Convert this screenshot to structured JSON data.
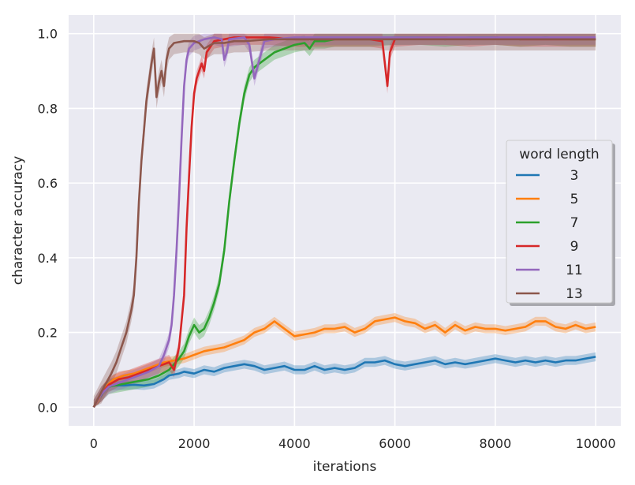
{
  "chart_data": {
    "type": "line",
    "xlabel": "iterations",
    "ylabel": "character accuracy",
    "xlim": [
      -500,
      10500
    ],
    "ylim": [
      -0.05,
      1.05
    ],
    "xticks": [
      0,
      2000,
      4000,
      6000,
      8000,
      10000
    ],
    "yticks": [
      0.0,
      0.2,
      0.4,
      0.6,
      0.8,
      1.0
    ],
    "xtick_labels": [
      "0",
      "2000",
      "4000",
      "6000",
      "8000",
      "10000"
    ],
    "ytick_labels": [
      "0.0",
      "0.2",
      "0.4",
      "0.6",
      "0.8",
      "1.0"
    ],
    "grid": true,
    "background": "#eaeaf2",
    "legend": {
      "title": "word length",
      "placement": "center-right"
    },
    "series": [
      {
        "name": "3",
        "color": "#1f77b4",
        "band": 0.012,
        "points": [
          [
            0,
            0.0
          ],
          [
            100,
            0.02
          ],
          [
            200,
            0.045
          ],
          [
            300,
            0.055
          ],
          [
            400,
            0.058
          ],
          [
            600,
            0.058
          ],
          [
            800,
            0.06
          ],
          [
            1000,
            0.058
          ],
          [
            1200,
            0.062
          ],
          [
            1400,
            0.075
          ],
          [
            1500,
            0.085
          ],
          [
            1700,
            0.09
          ],
          [
            1800,
            0.095
          ],
          [
            2000,
            0.09
          ],
          [
            2200,
            0.1
          ],
          [
            2400,
            0.095
          ],
          [
            2600,
            0.105
          ],
          [
            2800,
            0.11
          ],
          [
            3000,
            0.115
          ],
          [
            3200,
            0.11
          ],
          [
            3400,
            0.1
          ],
          [
            3600,
            0.105
          ],
          [
            3800,
            0.11
          ],
          [
            4000,
            0.1
          ],
          [
            4200,
            0.1
          ],
          [
            4400,
            0.11
          ],
          [
            4600,
            0.1
          ],
          [
            4800,
            0.105
          ],
          [
            5000,
            0.1
          ],
          [
            5200,
            0.105
          ],
          [
            5400,
            0.12
          ],
          [
            5600,
            0.12
          ],
          [
            5800,
            0.125
          ],
          [
            6000,
            0.115
          ],
          [
            6200,
            0.11
          ],
          [
            6400,
            0.115
          ],
          [
            6600,
            0.12
          ],
          [
            6800,
            0.125
          ],
          [
            7000,
            0.115
          ],
          [
            7200,
            0.12
          ],
          [
            7400,
            0.115
          ],
          [
            7600,
            0.12
          ],
          [
            7800,
            0.125
          ],
          [
            8000,
            0.13
          ],
          [
            8200,
            0.125
          ],
          [
            8400,
            0.12
          ],
          [
            8600,
            0.125
          ],
          [
            8800,
            0.12
          ],
          [
            9000,
            0.125
          ],
          [
            9200,
            0.12
          ],
          [
            9400,
            0.125
          ],
          [
            9600,
            0.125
          ],
          [
            9800,
            0.13
          ],
          [
            10000,
            0.135
          ]
        ]
      },
      {
        "name": "5",
        "color": "#ff7f0e",
        "band": 0.012,
        "points": [
          [
            0,
            0.0
          ],
          [
            100,
            0.02
          ],
          [
            200,
            0.05
          ],
          [
            400,
            0.075
          ],
          [
            600,
            0.085
          ],
          [
            800,
            0.09
          ],
          [
            1000,
            0.1
          ],
          [
            1200,
            0.11
          ],
          [
            1400,
            0.12
          ],
          [
            1600,
            0.125
          ],
          [
            1800,
            0.13
          ],
          [
            2000,
            0.14
          ],
          [
            2200,
            0.15
          ],
          [
            2400,
            0.155
          ],
          [
            2600,
            0.16
          ],
          [
            2800,
            0.17
          ],
          [
            3000,
            0.18
          ],
          [
            3200,
            0.2
          ],
          [
            3400,
            0.21
          ],
          [
            3600,
            0.23
          ],
          [
            3800,
            0.21
          ],
          [
            4000,
            0.19
          ],
          [
            4200,
            0.195
          ],
          [
            4400,
            0.2
          ],
          [
            4600,
            0.21
          ],
          [
            4800,
            0.21
          ],
          [
            5000,
            0.215
          ],
          [
            5200,
            0.2
          ],
          [
            5400,
            0.21
          ],
          [
            5600,
            0.23
          ],
          [
            5800,
            0.235
          ],
          [
            6000,
            0.24
          ],
          [
            6200,
            0.23
          ],
          [
            6400,
            0.225
          ],
          [
            6600,
            0.21
          ],
          [
            6800,
            0.22
          ],
          [
            7000,
            0.2
          ],
          [
            7200,
            0.22
          ],
          [
            7400,
            0.205
          ],
          [
            7600,
            0.215
          ],
          [
            7800,
            0.21
          ],
          [
            8000,
            0.21
          ],
          [
            8200,
            0.205
          ],
          [
            8400,
            0.21
          ],
          [
            8600,
            0.215
          ],
          [
            8800,
            0.23
          ],
          [
            9000,
            0.23
          ],
          [
            9200,
            0.215
          ],
          [
            9400,
            0.21
          ],
          [
            9600,
            0.22
          ],
          [
            9800,
            0.21
          ],
          [
            10000,
            0.215
          ]
        ]
      },
      {
        "name": "7",
        "color": "#2ca02c",
        "band": 0.02,
        "points": [
          [
            0,
            0.0
          ],
          [
            150,
            0.035
          ],
          [
            300,
            0.055
          ],
          [
            500,
            0.06
          ],
          [
            700,
            0.065
          ],
          [
            900,
            0.07
          ],
          [
            1100,
            0.075
          ],
          [
            1300,
            0.085
          ],
          [
            1500,
            0.1
          ],
          [
            1700,
            0.13
          ],
          [
            1800,
            0.15
          ],
          [
            1900,
            0.19
          ],
          [
            2000,
            0.22
          ],
          [
            2100,
            0.2
          ],
          [
            2200,
            0.21
          ],
          [
            2300,
            0.24
          ],
          [
            2400,
            0.28
          ],
          [
            2500,
            0.33
          ],
          [
            2600,
            0.42
          ],
          [
            2700,
            0.55
          ],
          [
            2800,
            0.66
          ],
          [
            2900,
            0.76
          ],
          [
            3000,
            0.84
          ],
          [
            3100,
            0.89
          ],
          [
            3200,
            0.91
          ],
          [
            3300,
            0.92
          ],
          [
            3400,
            0.93
          ],
          [
            3600,
            0.95
          ],
          [
            3800,
            0.96
          ],
          [
            4000,
            0.97
          ],
          [
            4200,
            0.975
          ],
          [
            4300,
            0.96
          ],
          [
            4400,
            0.98
          ],
          [
            4600,
            0.98
          ],
          [
            4800,
            0.985
          ],
          [
            5000,
            0.985
          ],
          [
            5500,
            0.985
          ],
          [
            6000,
            0.99
          ],
          [
            6500,
            0.99
          ],
          [
            7000,
            0.985
          ],
          [
            7500,
            0.99
          ],
          [
            8000,
            0.99
          ],
          [
            8500,
            0.985
          ],
          [
            9000,
            0.99
          ],
          [
            9500,
            0.985
          ],
          [
            10000,
            0.985
          ]
        ]
      },
      {
        "name": "9",
        "color": "#d62728",
        "band": 0.02,
        "points": [
          [
            0,
            0.0
          ],
          [
            150,
            0.035
          ],
          [
            300,
            0.06
          ],
          [
            500,
            0.075
          ],
          [
            700,
            0.08
          ],
          [
            900,
            0.09
          ],
          [
            1100,
            0.1
          ],
          [
            1300,
            0.11
          ],
          [
            1500,
            0.12
          ],
          [
            1600,
            0.1
          ],
          [
            1700,
            0.16
          ],
          [
            1800,
            0.3
          ],
          [
            1850,
            0.48
          ],
          [
            1900,
            0.62
          ],
          [
            1950,
            0.75
          ],
          [
            2000,
            0.84
          ],
          [
            2050,
            0.88
          ],
          [
            2100,
            0.9
          ],
          [
            2150,
            0.92
          ],
          [
            2200,
            0.9
          ],
          [
            2250,
            0.95
          ],
          [
            2300,
            0.96
          ],
          [
            2400,
            0.98
          ],
          [
            2600,
            0.985
          ],
          [
            2800,
            0.99
          ],
          [
            3000,
            0.99
          ],
          [
            3500,
            0.99
          ],
          [
            4000,
            0.985
          ],
          [
            5000,
            0.985
          ],
          [
            5500,
            0.985
          ],
          [
            5750,
            0.98
          ],
          [
            5800,
            0.92
          ],
          [
            5850,
            0.86
          ],
          [
            5900,
            0.95
          ],
          [
            6000,
            0.985
          ],
          [
            6500,
            0.99
          ],
          [
            7000,
            0.99
          ],
          [
            7500,
            0.985
          ],
          [
            8000,
            0.99
          ],
          [
            8500,
            0.985
          ],
          [
            9000,
            0.985
          ],
          [
            9500,
            0.985
          ],
          [
            10000,
            0.985
          ]
        ]
      },
      {
        "name": "11",
        "color": "#9467bd",
        "band": 0.02,
        "points": [
          [
            0,
            0.0
          ],
          [
            150,
            0.035
          ],
          [
            300,
            0.055
          ],
          [
            500,
            0.065
          ],
          [
            700,
            0.075
          ],
          [
            900,
            0.085
          ],
          [
            1100,
            0.095
          ],
          [
            1300,
            0.11
          ],
          [
            1400,
            0.14
          ],
          [
            1500,
            0.18
          ],
          [
            1550,
            0.22
          ],
          [
            1600,
            0.3
          ],
          [
            1650,
            0.42
          ],
          [
            1700,
            0.56
          ],
          [
            1750,
            0.72
          ],
          [
            1800,
            0.86
          ],
          [
            1850,
            0.93
          ],
          [
            1900,
            0.96
          ],
          [
            2000,
            0.975
          ],
          [
            2200,
            0.985
          ],
          [
            2400,
            0.99
          ],
          [
            2550,
            0.985
          ],
          [
            2600,
            0.93
          ],
          [
            2650,
            0.95
          ],
          [
            2700,
            0.985
          ],
          [
            3000,
            0.99
          ],
          [
            3100,
            0.97
          ],
          [
            3200,
            0.88
          ],
          [
            3300,
            0.93
          ],
          [
            3400,
            0.98
          ],
          [
            3600,
            0.985
          ],
          [
            4000,
            0.99
          ],
          [
            5000,
            0.99
          ],
          [
            6000,
            0.99
          ],
          [
            7000,
            0.99
          ],
          [
            8000,
            0.99
          ],
          [
            9000,
            0.99
          ],
          [
            10000,
            0.99
          ]
        ]
      },
      {
        "name": "13",
        "color": "#8c564b",
        "band": 0.03,
        "points": [
          [
            0,
            0.0
          ],
          [
            150,
            0.04
          ],
          [
            250,
            0.065
          ],
          [
            350,
            0.09
          ],
          [
            450,
            0.12
          ],
          [
            550,
            0.16
          ],
          [
            650,
            0.2
          ],
          [
            750,
            0.26
          ],
          [
            800,
            0.3
          ],
          [
            850,
            0.4
          ],
          [
            900,
            0.55
          ],
          [
            950,
            0.66
          ],
          [
            1000,
            0.74
          ],
          [
            1050,
            0.82
          ],
          [
            1100,
            0.87
          ],
          [
            1150,
            0.92
          ],
          [
            1200,
            0.96
          ],
          [
            1250,
            0.83
          ],
          [
            1300,
            0.87
          ],
          [
            1350,
            0.9
          ],
          [
            1400,
            0.86
          ],
          [
            1450,
            0.93
          ],
          [
            1500,
            0.96
          ],
          [
            1600,
            0.975
          ],
          [
            1800,
            0.98
          ],
          [
            2000,
            0.98
          ],
          [
            2100,
            0.975
          ],
          [
            2200,
            0.96
          ],
          [
            2400,
            0.975
          ],
          [
            2600,
            0.975
          ],
          [
            2800,
            0.98
          ],
          [
            3000,
            0.98
          ],
          [
            3500,
            0.985
          ],
          [
            4000,
            0.985
          ],
          [
            5000,
            0.985
          ],
          [
            6000,
            0.985
          ],
          [
            7000,
            0.985
          ],
          [
            8000,
            0.985
          ],
          [
            9000,
            0.985
          ],
          [
            10000,
            0.985
          ]
        ]
      }
    ]
  }
}
